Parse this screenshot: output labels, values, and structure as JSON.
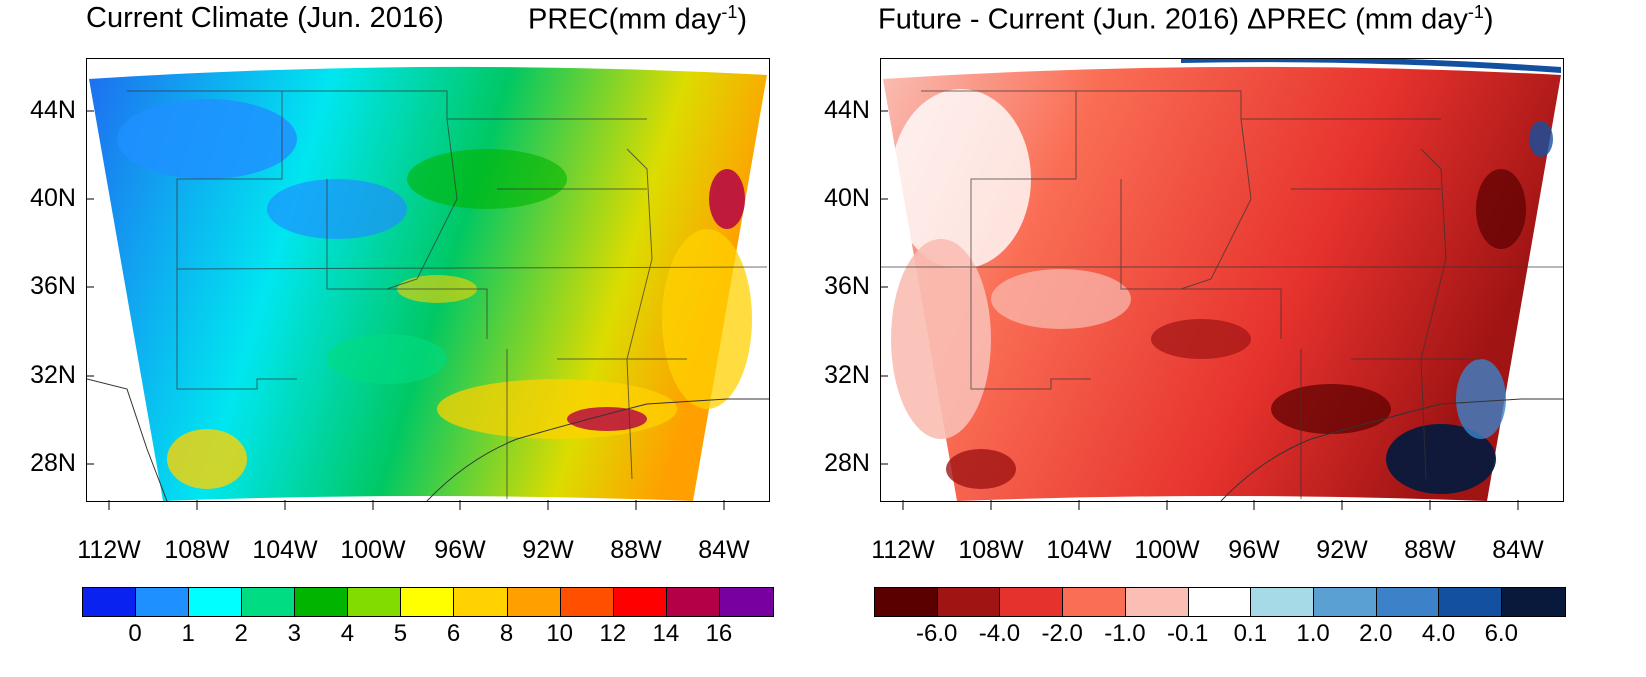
{
  "left_panel": {
    "title_left": "Current Climate (Jun. 2016)",
    "title_right_main": "PREC(mm day",
    "title_right_sup": "-1",
    "title_right_close": ")",
    "lat_labels": [
      "44N",
      "40N",
      "36N",
      "32N",
      "28N"
    ],
    "lon_labels": [
      "112W",
      "108W",
      "104W",
      "100W",
      "96W",
      "92W",
      "88W",
      "84W"
    ],
    "colorbar": {
      "colors": [
        "#0a22f0",
        "#1e90ff",
        "#00ffff",
        "#00dc82",
        "#00b400",
        "#82dc00",
        "#ffff00",
        "#ffd200",
        "#ffa000",
        "#ff5000",
        "#ff0000",
        "#b40046",
        "#7800a0"
      ],
      "labels": [
        "0",
        "1",
        "2",
        "3",
        "4",
        "5",
        "6",
        "8",
        "10",
        "12",
        "14",
        "16"
      ]
    }
  },
  "right_panel": {
    "title_main": "Future - Current (Jun. 2016) ΔPREC (mm day",
    "title_sup": "-1",
    "title_close": ")",
    "lat_labels": [
      "44N",
      "40N",
      "36N",
      "32N",
      "28N"
    ],
    "lon_labels": [
      "112W",
      "108W",
      "104W",
      "100W",
      "96W",
      "92W",
      "88W",
      "84W"
    ],
    "colorbar": {
      "colors": [
        "#5a0000",
        "#a01414",
        "#e6322d",
        "#fa6e55",
        "#fabeb4",
        "#ffffff",
        "#a5dae6",
        "#5aa0d2",
        "#3c82c8",
        "#1450a0",
        "#08193c"
      ],
      "labels": [
        "-6.0",
        "-4.0",
        "-2.0",
        "-1.0",
        "-0.1",
        "0.1",
        "1.0",
        "2.0",
        "4.0",
        "6.0"
      ]
    }
  },
  "colors": {
    "left_base": "#00e6f0",
    "left_edge": "#1e6ef0",
    "right_base": "#fa6e55",
    "right_light": "#fabeb4"
  }
}
